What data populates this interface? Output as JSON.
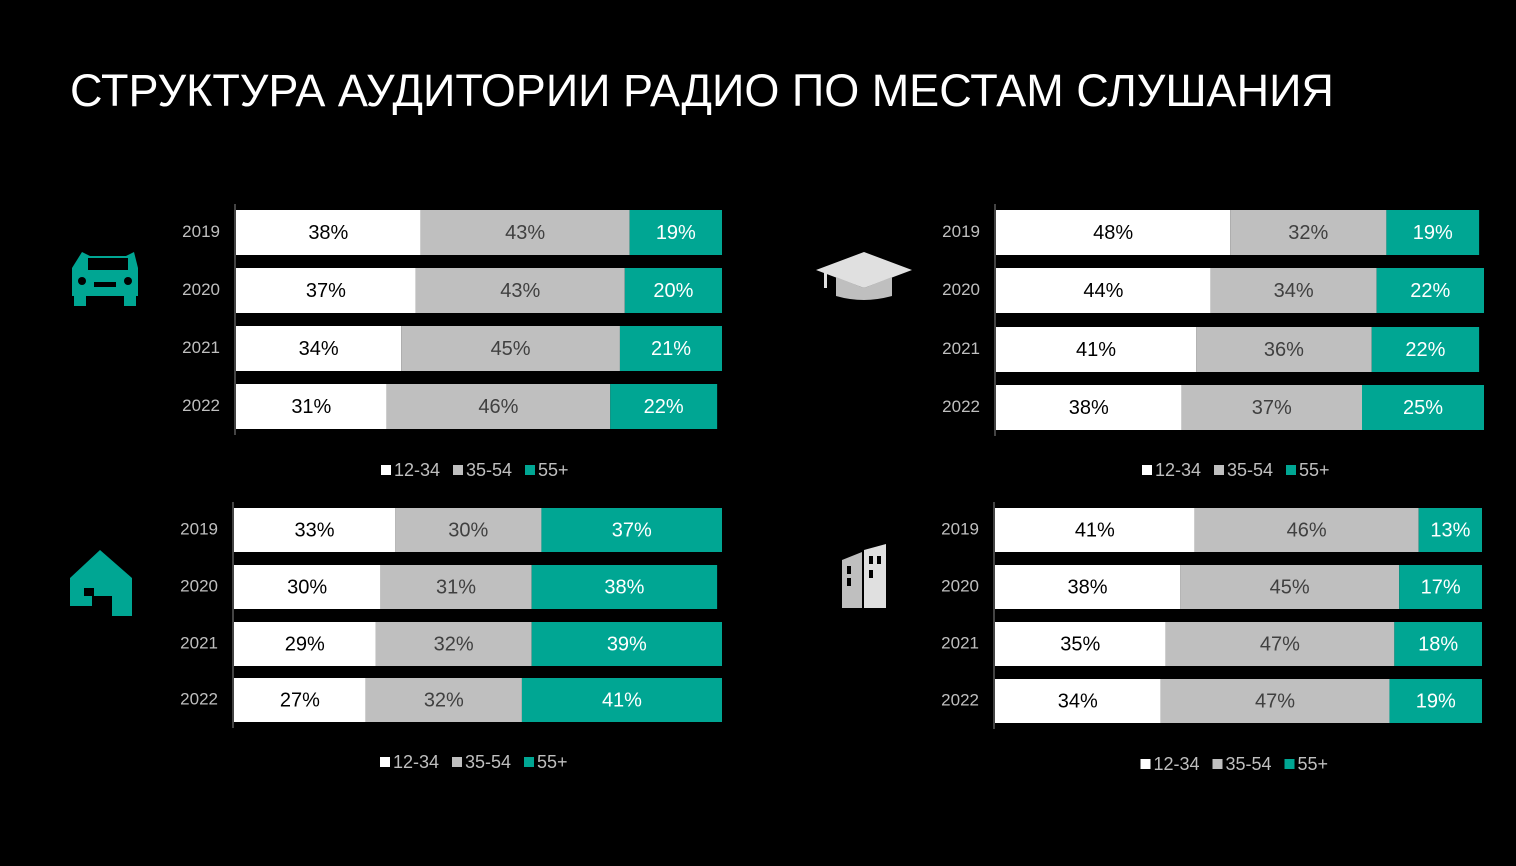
{
  "title": "СТРУКТУРА АУДИТОРИИ РАДИО ПО МЕСТАМ СЛУШАНИЯ",
  "chart_data": [
    {
      "type": "bar",
      "orientation": "horizontal",
      "stacked": true,
      "xlim": [
        0,
        100
      ],
      "categories": [
        "2019",
        "2020",
        "2021",
        "2022"
      ],
      "series": [
        {
          "name": "12-34",
          "color": "#ffffff",
          "values": [
            38,
            37,
            34,
            31
          ],
          "value_labels": [
            "38%",
            "37%",
            "34%",
            "31%"
          ]
        },
        {
          "name": "35-54",
          "color": "#bfbfbf",
          "values": [
            43,
            43,
            45,
            46
          ],
          "value_labels": [
            "43%",
            "43%",
            "45%",
            "46%"
          ]
        },
        {
          "name": "55+",
          "color": "#00a693",
          "values": [
            19,
            20,
            21,
            22
          ],
          "value_labels": [
            "19%",
            "20%",
            "21%",
            "22%"
          ]
        }
      ]
    },
    {
      "type": "bar",
      "orientation": "horizontal",
      "stacked": true,
      "xlim": [
        0,
        100
      ],
      "categories": [
        "2019",
        "2020",
        "2021",
        "2022"
      ],
      "series": [
        {
          "name": "12-34",
          "color": "#ffffff",
          "values": [
            48,
            44,
            41,
            38
          ],
          "value_labels": [
            "48%",
            "44%",
            "41%",
            "38%"
          ]
        },
        {
          "name": "35-54",
          "color": "#bfbfbf",
          "values": [
            32,
            34,
            36,
            37
          ],
          "value_labels": [
            "32%",
            "34%",
            "36%",
            "37%"
          ]
        },
        {
          "name": "55+",
          "color": "#00a693",
          "values": [
            19,
            22,
            22,
            25
          ],
          "value_labels": [
            "19%",
            "22%",
            "22%",
            "25%"
          ]
        }
      ]
    },
    {
      "type": "bar",
      "orientation": "horizontal",
      "stacked": true,
      "xlim": [
        0,
        100
      ],
      "categories": [
        "2019",
        "2020",
        "2021",
        "2022"
      ],
      "series": [
        {
          "name": "12-34",
          "color": "#ffffff",
          "values": [
            33,
            30,
            29,
            27
          ],
          "value_labels": [
            "33%",
            "30%",
            "29%",
            "27%"
          ]
        },
        {
          "name": "35-54",
          "color": "#bfbfbf",
          "values": [
            30,
            31,
            32,
            32
          ],
          "value_labels": [
            "30%",
            "31%",
            "32%",
            "32%"
          ]
        },
        {
          "name": "55+",
          "color": "#00a693",
          "values": [
            37,
            38,
            39,
            41
          ],
          "value_labels": [
            "37%",
            "38%",
            "39%",
            "41%"
          ]
        }
      ]
    },
    {
      "type": "bar",
      "orientation": "horizontal",
      "stacked": true,
      "xlim": [
        0,
        100
      ],
      "categories": [
        "2019",
        "2020",
        "2021",
        "2022"
      ],
      "series": [
        {
          "name": "12-34",
          "color": "#ffffff",
          "values": [
            41,
            38,
            35,
            34
          ],
          "value_labels": [
            "41%",
            "38%",
            "35%",
            "34%"
          ]
        },
        {
          "name": "35-54",
          "color": "#bfbfbf",
          "values": [
            46,
            45,
            47,
            47
          ],
          "value_labels": [
            "46%",
            "45%",
            "47%",
            "47%"
          ]
        },
        {
          "name": "55+",
          "color": "#00a693",
          "values": [
            13,
            17,
            18,
            19
          ],
          "value_labels": [
            "13%",
            "17%",
            "18%",
            "19%"
          ]
        }
      ]
    }
  ]
}
